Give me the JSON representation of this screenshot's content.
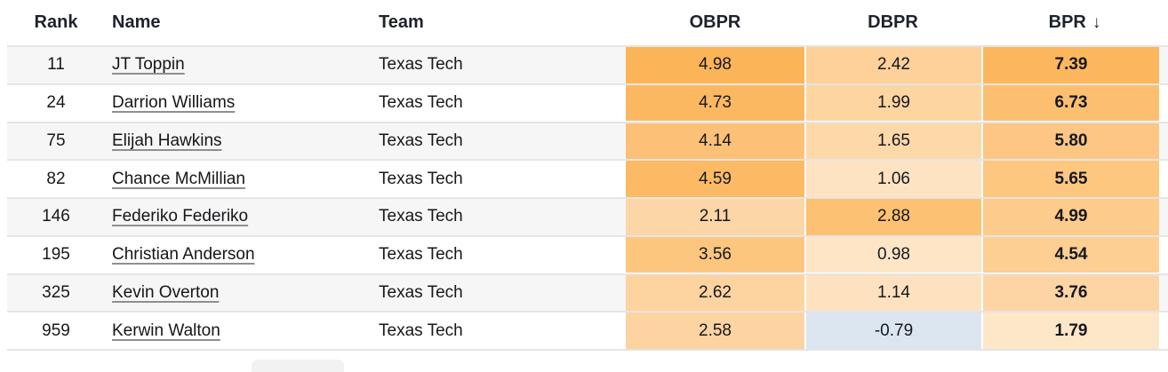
{
  "table": {
    "columns": [
      {
        "key": "rank",
        "label": "Rank"
      },
      {
        "key": "name",
        "label": "Name"
      },
      {
        "key": "team",
        "label": "Team"
      },
      {
        "key": "obpr",
        "label": "OBPR"
      },
      {
        "key": "dbpr",
        "label": "DBPR"
      },
      {
        "key": "bpr",
        "label": "BPR"
      }
    ],
    "sort": {
      "column": "BPR",
      "direction": "desc",
      "arrow": "↓"
    },
    "rows": [
      {
        "rank": "11",
        "name": "JT Toppin",
        "team": "Texas Tech",
        "obpr": "4.98",
        "dbpr": "2.42",
        "bpr": "7.39",
        "obpr_bg": "#fcb458",
        "dbpr_bg": "#fdd199",
        "bpr_bg": "#fcb75e"
      },
      {
        "rank": "24",
        "name": "Darrion Williams",
        "team": "Texas Tech",
        "obpr": "4.73",
        "dbpr": "1.99",
        "bpr": "6.73",
        "obpr_bg": "#fcb860",
        "dbpr_bg": "#fdd5a1",
        "bpr_bg": "#fcbf70"
      },
      {
        "rank": "75",
        "name": "Elijah Hawkins",
        "team": "Texas Tech",
        "obpr": "4.14",
        "dbpr": "1.65",
        "bpr": "5.80",
        "obpr_bg": "#fcc077",
        "dbpr_bg": "#fdd8a9",
        "bpr_bg": "#fdc684"
      },
      {
        "rank": "82",
        "name": "Chance McMillian",
        "team": "Texas Tech",
        "obpr": "4.59",
        "dbpr": "1.06",
        "bpr": "5.65",
        "obpr_bg": "#fcba65",
        "dbpr_bg": "#fee3c2",
        "bpr_bg": "#fdc780"
      },
      {
        "rank": "146",
        "name": "Federiko Federiko",
        "team": "Texas Tech",
        "obpr": "2.11",
        "dbpr": "2.88",
        "bpr": "4.99",
        "obpr_bg": "#fdd6a7",
        "dbpr_bg": "#fcc172",
        "bpr_bg": "#fdcb8b"
      },
      {
        "rank": "195",
        "name": "Christian Anderson",
        "team": "Texas Tech",
        "obpr": "3.56",
        "dbpr": "0.98",
        "bpr": "4.54",
        "obpr_bg": "#fdc67f",
        "dbpr_bg": "#fee5c6",
        "bpr_bg": "#fdcf93"
      },
      {
        "rank": "325",
        "name": "Kevin Overton",
        "team": "Texas Tech",
        "obpr": "2.62",
        "dbpr": "1.14",
        "bpr": "3.76",
        "obpr_bg": "#fdd3a0",
        "dbpr_bg": "#fee2c0",
        "bpr_bg": "#fdd5a5"
      },
      {
        "rank": "959",
        "name": "Kerwin Walton",
        "team": "Texas Tech",
        "obpr": "2.58",
        "dbpr": "-0.79",
        "bpr": "1.79",
        "obpr_bg": "#fdd3a1",
        "dbpr_bg": "#dbe6f1",
        "bpr_bg": "#fee6c9"
      }
    ]
  },
  "colors": {
    "row_stripe": "#f6f6f6",
    "separator": "#e5e5e5",
    "header_text": "#1d222b",
    "cell_text": "#17181c",
    "negative_cell": "#dbe6f1",
    "scale_high": "#fcb458",
    "scale_low": "#fee6c9"
  },
  "footer": {
    "partial_button_visible": true
  }
}
